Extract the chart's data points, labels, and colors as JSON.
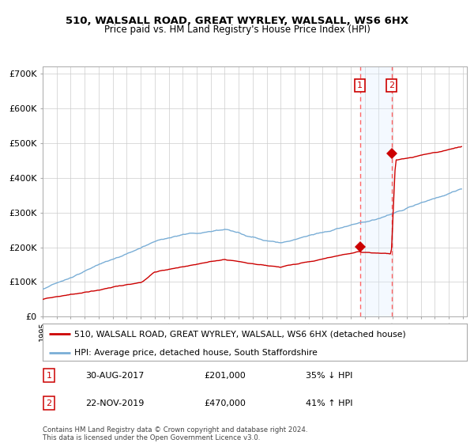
{
  "title": "510, WALSALL ROAD, GREAT WYRLEY, WALSALL, WS6 6HX",
  "subtitle": "Price paid vs. HM Land Registry's House Price Index (HPI)",
  "legend_line1": "510, WALSALL ROAD, GREAT WYRLEY, WALSALL, WS6 6HX (detached house)",
  "legend_line2": "HPI: Average price, detached house, South Staffordshire",
  "footer1": "Contains HM Land Registry data © Crown copyright and database right 2024.",
  "footer2": "This data is licensed under the Open Government Licence v3.0.",
  "transaction1_date": "30-AUG-2017",
  "transaction1_price": 201000,
  "transaction1_pct": "35% ↓ HPI",
  "transaction2_date": "22-NOV-2019",
  "transaction2_price": 470000,
  "transaction2_pct": "41% ↑ HPI",
  "red_color": "#cc0000",
  "blue_color": "#7aaed6",
  "marker_color": "#cc0000",
  "shade_color": "#ddeeff",
  "dashed_color": "#ff6666",
  "ylim": [
    0,
    720000
  ],
  "yticks": [
    0,
    100000,
    200000,
    300000,
    400000,
    500000,
    600000,
    700000
  ],
  "ytick_labels": [
    "£0",
    "£100K",
    "£200K",
    "£300K",
    "£400K",
    "£500K",
    "£600K",
    "£700K"
  ],
  "year_start": 1995,
  "year_end": 2025
}
